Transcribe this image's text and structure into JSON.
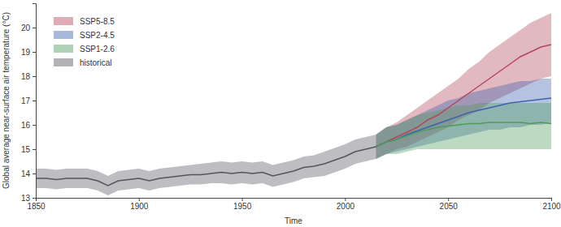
{
  "chart_data": {
    "type": "line",
    "x_label": "Time",
    "y_label": "Global average near-surface air temperature (°C)",
    "xlim": [
      1850,
      2100
    ],
    "xticks": [
      1850,
      1900,
      1950,
      2000,
      2050,
      2100
    ],
    "ylim": [
      13,
      21
    ],
    "yticks": [
      13,
      14,
      15,
      16,
      17,
      18,
      19,
      20
    ],
    "grid": false,
    "legend": "upper left",
    "series": [
      {
        "name": "SSP5-8.5",
        "color": "#b3475c",
        "x": [
          2015,
          2020,
          2025,
          2030,
          2035,
          2040,
          2045,
          2050,
          2055,
          2060,
          2065,
          2070,
          2075,
          2080,
          2085,
          2090,
          2095,
          2100
        ],
        "values": [
          15.1,
          15.3,
          15.5,
          15.7,
          15.9,
          16.2,
          16.4,
          16.7,
          17.0,
          17.3,
          17.6,
          17.9,
          18.2,
          18.5,
          18.8,
          19.0,
          19.2,
          19.3
        ],
        "lower": [
          14.6,
          14.8,
          15.0,
          15.1,
          15.3,
          15.5,
          15.7,
          15.9,
          16.2,
          16.4,
          16.6,
          16.9,
          17.1,
          17.3,
          17.5,
          17.7,
          17.9,
          18.0
        ],
        "upper": [
          15.6,
          15.9,
          16.1,
          16.4,
          16.7,
          17.0,
          17.3,
          17.6,
          17.9,
          18.3,
          18.6,
          19.0,
          19.3,
          19.6,
          19.9,
          20.2,
          20.4,
          20.6
        ]
      },
      {
        "name": "SSP2-4.5",
        "color": "#3d62ad",
        "x": [
          2015,
          2020,
          2025,
          2030,
          2035,
          2040,
          2045,
          2050,
          2055,
          2060,
          2065,
          2070,
          2075,
          2080,
          2085,
          2090,
          2095,
          2100
        ],
        "values": [
          15.1,
          15.3,
          15.4,
          15.6,
          15.75,
          15.9,
          16.05,
          16.2,
          16.35,
          16.5,
          16.6,
          16.7,
          16.8,
          16.9,
          16.95,
          17.0,
          17.05,
          17.1
        ],
        "lower": [
          14.6,
          14.8,
          14.9,
          15.0,
          15.1,
          15.2,
          15.3,
          15.4,
          15.5,
          15.6,
          15.7,
          15.8,
          15.8,
          15.9,
          15.9,
          16.0,
          16.0,
          16.1
        ],
        "upper": [
          15.6,
          15.9,
          16.0,
          16.2,
          16.4,
          16.6,
          16.8,
          17.0,
          17.1,
          17.3,
          17.4,
          17.5,
          17.6,
          17.7,
          17.8,
          17.8,
          17.9,
          17.9
        ]
      },
      {
        "name": "SSP1-2.6",
        "color": "#4e9a5c",
        "x": [
          2015,
          2020,
          2025,
          2030,
          2035,
          2040,
          2045,
          2050,
          2055,
          2060,
          2065,
          2070,
          2075,
          2080,
          2085,
          2090,
          2095,
          2100
        ],
        "values": [
          15.1,
          15.3,
          15.4,
          15.55,
          15.7,
          15.8,
          15.9,
          15.95,
          16.0,
          16.05,
          16.05,
          16.1,
          16.1,
          16.1,
          16.1,
          16.05,
          16.1,
          16.05
        ],
        "lower": [
          14.6,
          14.8,
          14.8,
          14.9,
          15.0,
          15.0,
          15.0,
          15.0,
          15.0,
          15.0,
          15.0,
          15.0,
          15.0,
          15.0,
          15.0,
          15.0,
          15.0,
          15.0
        ],
        "upper": [
          15.6,
          15.9,
          16.0,
          16.2,
          16.4,
          16.5,
          16.6,
          16.7,
          16.8,
          16.8,
          16.9,
          16.9,
          16.9,
          16.9,
          16.9,
          16.9,
          16.9,
          16.9
        ]
      },
      {
        "name": "historical",
        "color": "#55555f",
        "x": [
          1850,
          1855,
          1860,
          1865,
          1870,
          1875,
          1880,
          1885,
          1890,
          1895,
          1900,
          1905,
          1910,
          1915,
          1920,
          1925,
          1930,
          1935,
          1940,
          1945,
          1950,
          1955,
          1960,
          1965,
          1970,
          1975,
          1980,
          1985,
          1990,
          1995,
          2000,
          2005,
          2010,
          2015
        ],
        "values": [
          13.8,
          13.8,
          13.75,
          13.8,
          13.8,
          13.8,
          13.7,
          13.5,
          13.7,
          13.75,
          13.8,
          13.7,
          13.8,
          13.85,
          13.9,
          13.95,
          13.95,
          14.0,
          14.05,
          14.0,
          14.05,
          14.0,
          14.05,
          13.9,
          14.0,
          14.1,
          14.25,
          14.3,
          14.4,
          14.55,
          14.7,
          14.9,
          15.0,
          15.1
        ],
        "lower": [
          13.4,
          13.4,
          13.35,
          13.4,
          13.4,
          13.4,
          13.3,
          13.1,
          13.3,
          13.35,
          13.4,
          13.3,
          13.4,
          13.45,
          13.5,
          13.55,
          13.55,
          13.6,
          13.6,
          13.55,
          13.6,
          13.55,
          13.6,
          13.45,
          13.55,
          13.65,
          13.8,
          13.85,
          13.9,
          14.05,
          14.2,
          14.4,
          14.5,
          14.6
        ],
        "upper": [
          14.2,
          14.2,
          14.15,
          14.2,
          14.2,
          14.2,
          14.1,
          13.9,
          14.1,
          14.15,
          14.2,
          14.1,
          14.2,
          14.25,
          14.3,
          14.35,
          14.4,
          14.45,
          14.5,
          14.45,
          14.5,
          14.45,
          14.5,
          14.35,
          14.45,
          14.55,
          14.7,
          14.75,
          14.9,
          15.05,
          15.2,
          15.4,
          15.5,
          15.6
        ]
      }
    ]
  }
}
